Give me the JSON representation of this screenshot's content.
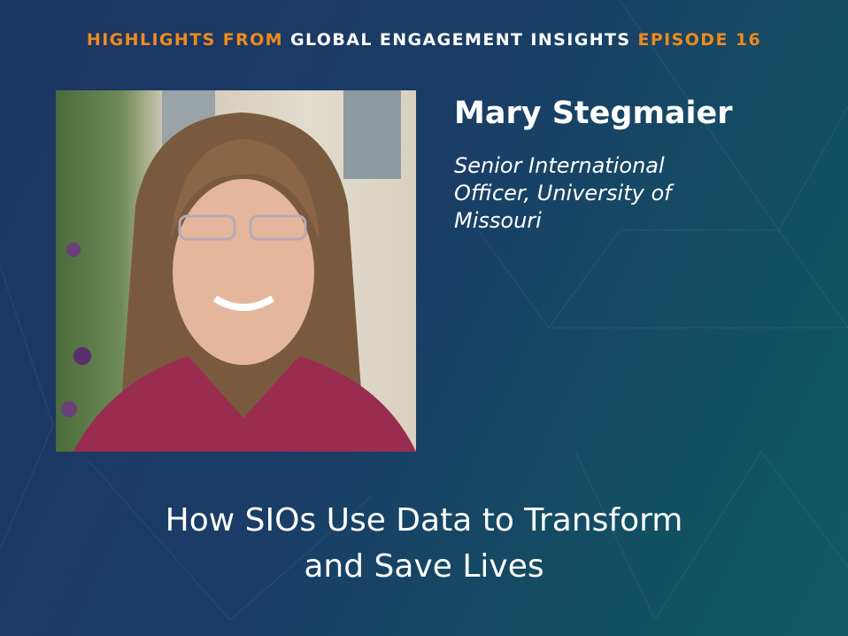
{
  "header": {
    "prefix": "HIGHLIGHTS FROM",
    "series": "GLOBAL ENGAGEMENT INSIGHTS",
    "episode": "EPISODE 16"
  },
  "speaker": {
    "name": "Mary Stegmaier",
    "role": "Senior International Officer, University of Missouri"
  },
  "episode_title": {
    "line1": "How SIOs Use Data to Transform",
    "line2": "and Save Lives"
  },
  "colors": {
    "accent": "#f08a1c",
    "background_start": "#1c3563",
    "background_end": "#0f5a63"
  }
}
